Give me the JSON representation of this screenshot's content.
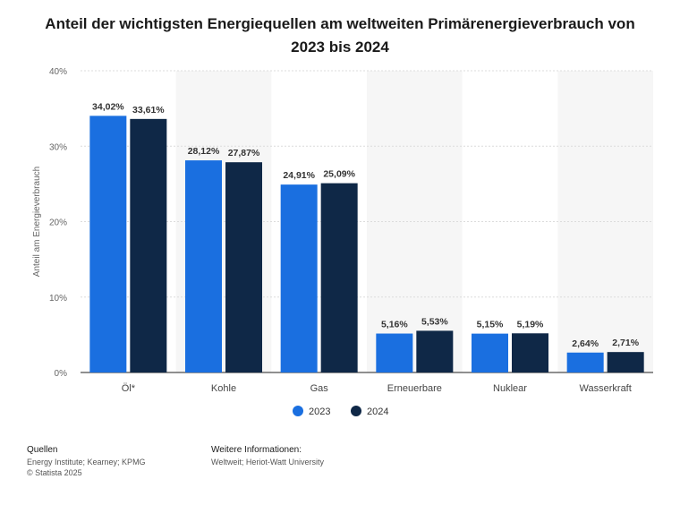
{
  "title_line1": "Anteil der wichtigsten Energiequellen am weltweiten Primärenergieverbrauch von",
  "title_line2": "2023 bis 2024",
  "chart_data": {
    "type": "bar",
    "categories": [
      "Öl*",
      "Kohle",
      "Gas",
      "Erneuerbare",
      "Nuklear",
      "Wasserkraft"
    ],
    "series": [
      {
        "name": "2023",
        "values": [
          34.02,
          28.12,
          24.91,
          5.16,
          5.15,
          2.64
        ],
        "labels": [
          "34,02%",
          "28,12%",
          "24,91%",
          "5,16%",
          "5,15%",
          "2,64%"
        ],
        "color": "#1a6fe0"
      },
      {
        "name": "2024",
        "values": [
          33.61,
          27.87,
          25.09,
          5.53,
          5.19,
          2.71
        ],
        "labels": [
          "33,61%",
          "27,87%",
          "25,09%",
          "5,53%",
          "5,19%",
          "2,71%"
        ],
        "color": "#0f2847"
      }
    ],
    "ylabel": "Anteil am Energieverbrauch",
    "ylim": [
      0,
      40
    ],
    "yticks": [
      0,
      10,
      20,
      30,
      40
    ],
    "ytick_labels": [
      "0%",
      "10%",
      "20%",
      "30%",
      "40%"
    ],
    "grid": true,
    "legend": "bottom"
  },
  "footer": {
    "sources_head": "Quellen",
    "sources_text": "Energy Institute; Kearney; KPMG",
    "copyright": "© Statista 2025",
    "info_head": "Weitere Informationen:",
    "info_text": "Weltweit; Heriot-Watt University"
  }
}
